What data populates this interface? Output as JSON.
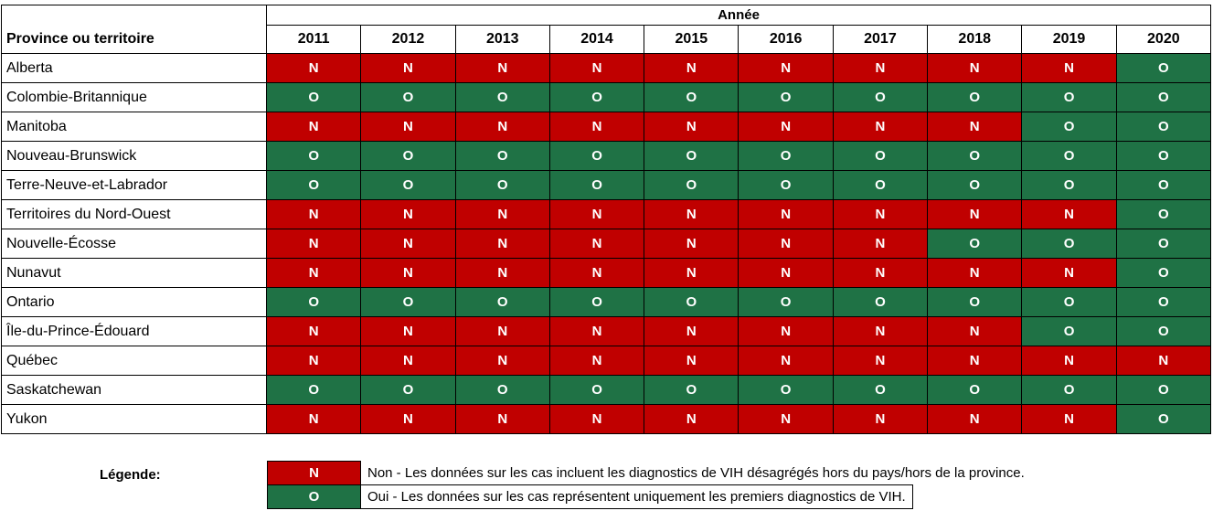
{
  "table": {
    "corner_header": "Province ou territoire",
    "year_group_header": "Année"
  },
  "chart_data": {
    "type": "heatmap",
    "x_label": "Année",
    "y_label": "Province ou territoire",
    "x": [
      "2011",
      "2012",
      "2013",
      "2014",
      "2015",
      "2016",
      "2017",
      "2018",
      "2019",
      "2020"
    ],
    "y": [
      "Alberta",
      "Colombie-Britannique",
      "Manitoba",
      "Nouveau-Brunswick",
      "Terre-Neuve-et-Labrador",
      "Territoires du Nord-Ouest",
      "Nouvelle-Écosse",
      "Nunavut",
      "Ontario",
      "Île-du-Prince-Édouard",
      "Québec",
      "Saskatchewan",
      "Yukon"
    ],
    "values": [
      [
        "N",
        "N",
        "N",
        "N",
        "N",
        "N",
        "N",
        "N",
        "N",
        "O"
      ],
      [
        "O",
        "O",
        "O",
        "O",
        "O",
        "O",
        "O",
        "O",
        "O",
        "O"
      ],
      [
        "N",
        "N",
        "N",
        "N",
        "N",
        "N",
        "N",
        "N",
        "O",
        "O"
      ],
      [
        "O",
        "O",
        "O",
        "O",
        "O",
        "O",
        "O",
        "O",
        "O",
        "O"
      ],
      [
        "O",
        "O",
        "O",
        "O",
        "O",
        "O",
        "O",
        "O",
        "O",
        "O"
      ],
      [
        "N",
        "N",
        "N",
        "N",
        "N",
        "N",
        "N",
        "N",
        "N",
        "O"
      ],
      [
        "N",
        "N",
        "N",
        "N",
        "N",
        "N",
        "N",
        "O",
        "O",
        "O"
      ],
      [
        "N",
        "N",
        "N",
        "N",
        "N",
        "N",
        "N",
        "N",
        "N",
        "O"
      ],
      [
        "O",
        "O",
        "O",
        "O",
        "O",
        "O",
        "O",
        "O",
        "O",
        "O"
      ],
      [
        "N",
        "N",
        "N",
        "N",
        "N",
        "N",
        "N",
        "N",
        "O",
        "O"
      ],
      [
        "N",
        "N",
        "N",
        "N",
        "N",
        "N",
        "N",
        "N",
        "N",
        "N"
      ],
      [
        "O",
        "O",
        "O",
        "O",
        "O",
        "O",
        "O",
        "O",
        "O",
        "O"
      ],
      [
        "N",
        "N",
        "N",
        "N",
        "N",
        "N",
        "N",
        "N",
        "N",
        "O"
      ]
    ],
    "cell_colors": {
      "N": "#C00000",
      "O": "#1F7245"
    },
    "cell_text_color": "#FFFFFF",
    "legend_position": "bottom-left"
  },
  "legend": {
    "title": "Légende:",
    "items": [
      {
        "symbol": "N",
        "color": "#C00000",
        "label": "Non - Les données sur les cas incluent les diagnostics de VIH désagrégés hors du pays/hors de la province."
      },
      {
        "symbol": "O",
        "color": "#1F7245",
        "label": "Oui - Les données sur les cas représentent uniquement les premiers diagnostics de VIH."
      }
    ]
  }
}
